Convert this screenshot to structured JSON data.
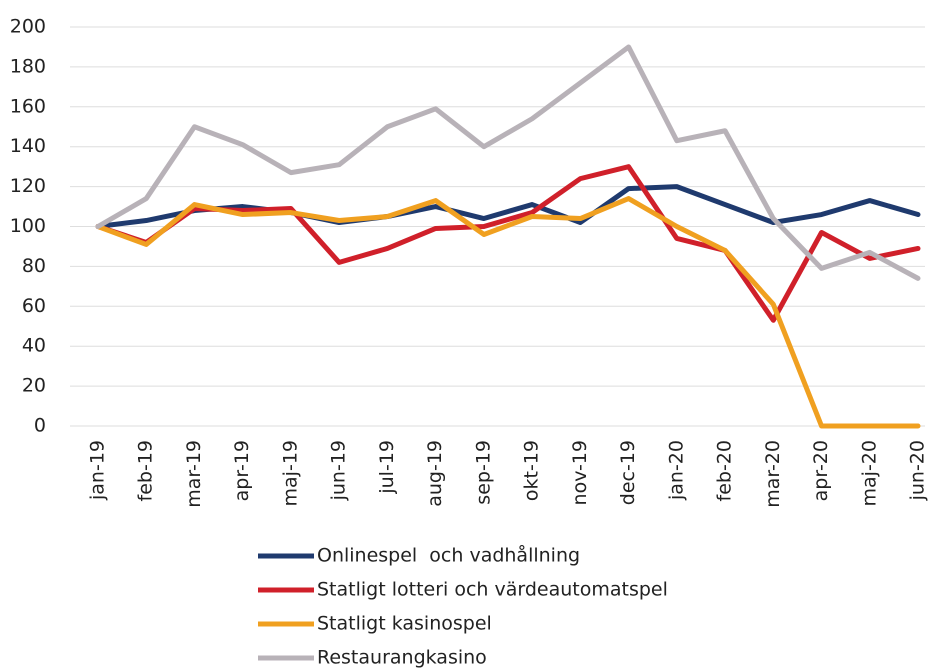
{
  "chart_data": {
    "type": "line",
    "categories": [
      "jan-19",
      "feb-19",
      "mar-19",
      "apr-19",
      "maj-19",
      "jun-19",
      "jul-19",
      "aug-19",
      "sep-19",
      "okt-19",
      "nov-19",
      "dec-19",
      "jan-20",
      "feb-20",
      "mar-20",
      "apr-20",
      "maj-20",
      "jun-20"
    ],
    "series": [
      {
        "name": "Onlinespel  och vadhållning",
        "color": "#1f3a6e",
        "values": [
          100,
          103,
          108,
          110,
          107,
          102,
          105,
          110,
          104,
          111,
          102,
          119,
          120,
          111,
          102,
          106,
          113,
          106
        ]
      },
      {
        "name": "Statligt lotteri och värdeautomatspel",
        "color": "#d0202a",
        "values": [
          100,
          92,
          109,
          108,
          109,
          82,
          89,
          99,
          100,
          107,
          124,
          130,
          94,
          88,
          53,
          97,
          84,
          89
        ]
      },
      {
        "name": "Statligt kasinospel",
        "color": "#f0a020",
        "values": [
          100,
          91,
          111,
          106,
          107,
          103,
          105,
          113,
          96,
          105,
          104,
          114,
          100,
          88,
          61,
          0,
          0,
          0
        ]
      },
      {
        "name": "Restaurangkasino",
        "color": "#b8b2b8",
        "values": [
          100,
          114,
          150,
          141,
          127,
          131,
          150,
          159,
          140,
          154,
          172,
          190,
          143,
          148,
          104,
          79,
          87,
          74
        ]
      }
    ],
    "ylim": [
      0,
      200
    ],
    "yticks": [
      0,
      20,
      40,
      60,
      80,
      100,
      120,
      140,
      160,
      180,
      200
    ],
    "grid": true,
    "legend": "bottom"
  }
}
